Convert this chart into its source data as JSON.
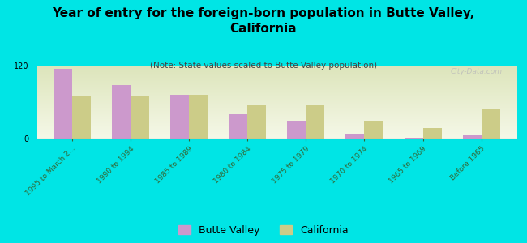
{
  "title": "Year of entry for the foreign-born population in Butte Valley,\nCalifornia",
  "subtitle": "(Note: State values scaled to Butte Valley population)",
  "background_color": "#00e5e5",
  "categories": [
    "1995 to March 2...",
    "1990 to 1994",
    "1985 to 1989",
    "1980 to 1984",
    "1975 to 1979",
    "1970 to 1974",
    "1965 to 1969",
    "Before 1965"
  ],
  "butte_valley": [
    115,
    88,
    72,
    40,
    30,
    8,
    2,
    6
  ],
  "california": [
    70,
    70,
    72,
    55,
    55,
    30,
    18,
    48
  ],
  "butte_color": "#cc99cc",
  "california_color": "#cccc88",
  "ylim": [
    0,
    120
  ],
  "yticks": [
    0,
    120
  ],
  "title_fontsize": 11,
  "subtitle_fontsize": 7.5,
  "legend_fontsize": 9,
  "watermark": "City-Data.com"
}
